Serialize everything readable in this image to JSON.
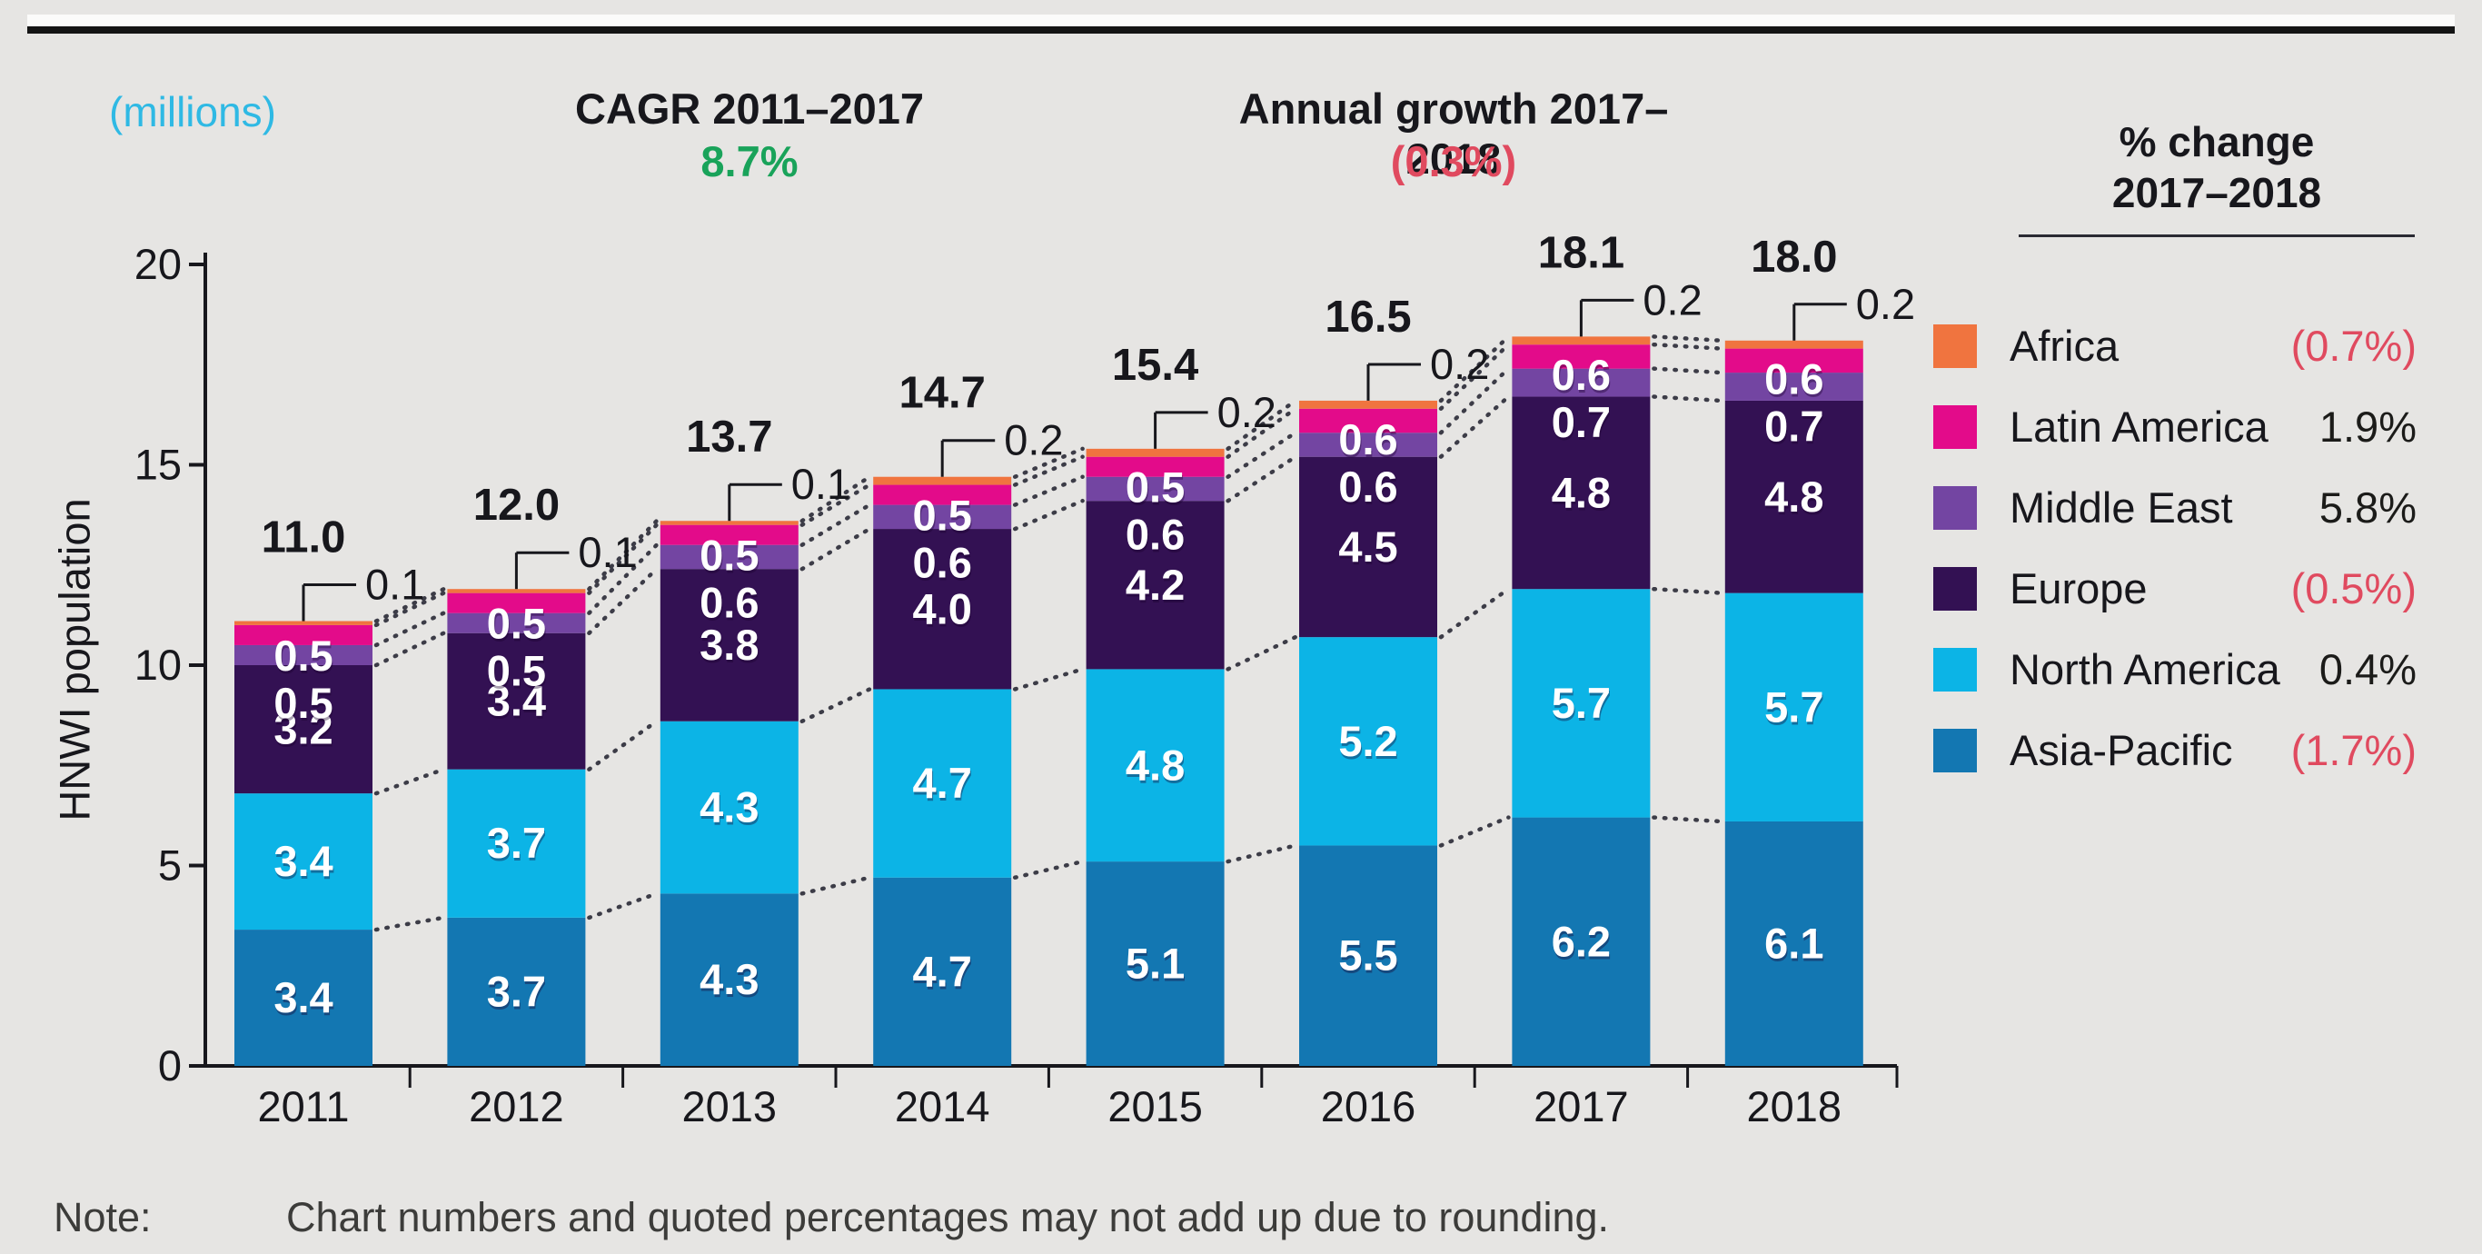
{
  "header": {
    "units_label": "(millions)",
    "cagr_title": "CAGR 2011–2017",
    "cagr_value": "8.7%",
    "annual_growth_title": "Annual growth 2017–2018",
    "annual_growth_value": "(0.3%)",
    "pct_change_heading": "% change\n2017–2018"
  },
  "colors": {
    "background": "#e6e5e3",
    "accent_cyan_text": "#2fb9e4",
    "positive_green": "#19a35a",
    "negative_red": "#e04a5f",
    "text_black": "#17171c",
    "dotted_connector": "#3c3c47"
  },
  "legend": {
    "items": [
      {
        "label": "Africa",
        "change": "(0.7%)",
        "color": "#f0743f",
        "change_color": "#e04a5f"
      },
      {
        "label": "Latin America",
        "change": "1.9%",
        "color": "#e30b8a",
        "change_color": "#1b1b19"
      },
      {
        "label": "Middle East",
        "change": "5.8%",
        "color": "#7345a2",
        "change_color": "#1b1b19"
      },
      {
        "label": "Europe",
        "change": "(0.5%)",
        "color": "#331153",
        "change_color": "#e04a5f"
      },
      {
        "label": "North America",
        "change": "0.4%",
        "color": "#0cb4e6",
        "change_color": "#1b1b19"
      },
      {
        "label": "Asia-Pacific",
        "change": "(1.7%)",
        "color": "#1377b2",
        "change_color": "#e04a5f"
      }
    ]
  },
  "note": {
    "label": "Note:",
    "text": "Chart numbers and quoted percentages may not add up due to rounding."
  },
  "chart_data": {
    "type": "bar",
    "stacked": true,
    "title": "(millions)",
    "ylabel": "HNWI population",
    "xlabel": "",
    "ylim": [
      0,
      20
    ],
    "yticks": [
      0,
      5,
      10,
      15,
      20
    ],
    "grid": false,
    "legend_position": "right",
    "categories": [
      "2011",
      "2012",
      "2013",
      "2014",
      "2015",
      "2016",
      "2017",
      "2018"
    ],
    "series": [
      {
        "name": "Asia-Pacific",
        "color": "#1377b2",
        "values": [
          3.4,
          3.7,
          4.3,
          4.7,
          5.1,
          5.5,
          6.2,
          6.1
        ]
      },
      {
        "name": "North America",
        "color": "#0cb4e6",
        "values": [
          3.4,
          3.7,
          4.3,
          4.7,
          4.8,
          5.2,
          5.7,
          5.7
        ]
      },
      {
        "name": "Europe",
        "color": "#331153",
        "values": [
          3.2,
          3.4,
          3.8,
          4.0,
          4.2,
          4.5,
          4.8,
          4.8
        ]
      },
      {
        "name": "Middle East",
        "color": "#7345a2",
        "values": [
          0.5,
          0.5,
          0.6,
          0.6,
          0.6,
          0.6,
          0.7,
          0.7
        ]
      },
      {
        "name": "Latin America",
        "color": "#e30b8a",
        "values": [
          0.5,
          0.5,
          0.5,
          0.5,
          0.5,
          0.6,
          0.6,
          0.6
        ]
      },
      {
        "name": "Africa",
        "color": "#f0743f",
        "values": [
          0.1,
          0.1,
          0.1,
          0.2,
          0.2,
          0.2,
          0.2,
          0.2
        ]
      }
    ],
    "totals": [
      "11.0",
      "12.0",
      "13.7",
      "14.7",
      "15.4",
      "16.5",
      "18.1",
      "18.0"
    ],
    "africa_callouts": [
      "0.1",
      "0.1",
      "0.1",
      "0.2",
      "0.2",
      "0.2",
      "0.2",
      "0.2"
    ]
  }
}
